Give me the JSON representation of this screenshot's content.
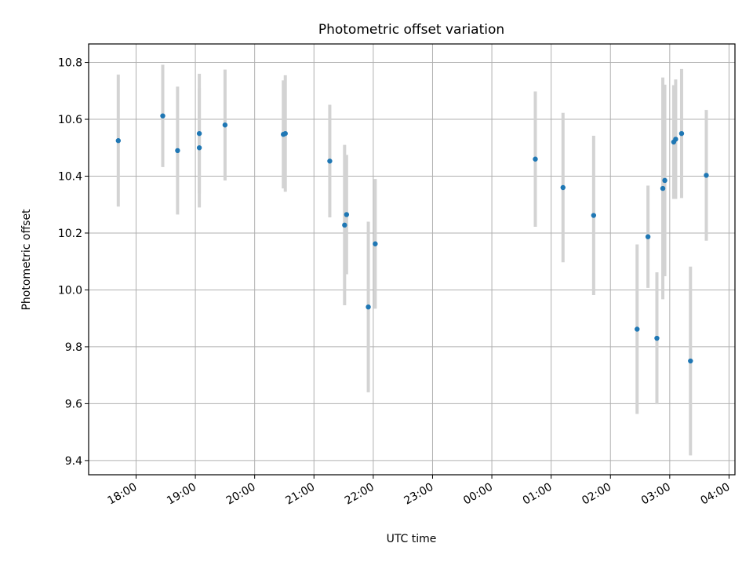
{
  "chart_data": {
    "type": "scatter",
    "title": "Photometric offset variation",
    "xlabel": "UTC time",
    "ylabel": "Photometric offset",
    "x_axis": "time",
    "xlim": [
      "2024-01-01T17:12",
      "2024-01-02T04:06"
    ],
    "ylim": [
      9.35,
      10.865
    ],
    "grid": true,
    "colors": {
      "point": "#1f77b4",
      "errorbar": "#d3d3d3",
      "grid": "#b0b0b0"
    },
    "x_ticks": [
      {
        "t": "2024-01-01T18:00",
        "label": "18:00"
      },
      {
        "t": "2024-01-01T19:00",
        "label": "19:00"
      },
      {
        "t": "2024-01-01T20:00",
        "label": "20:00"
      },
      {
        "t": "2024-01-01T21:00",
        "label": "21:00"
      },
      {
        "t": "2024-01-01T22:00",
        "label": "22:00"
      },
      {
        "t": "2024-01-01T23:00",
        "label": "23:00"
      },
      {
        "t": "2024-01-02T00:00",
        "label": "00:00"
      },
      {
        "t": "2024-01-02T01:00",
        "label": "01:00"
      },
      {
        "t": "2024-01-02T02:00",
        "label": "02:00"
      },
      {
        "t": "2024-01-02T03:00",
        "label": "03:00"
      },
      {
        "t": "2024-01-02T04:00",
        "label": "04:00"
      }
    ],
    "y_ticks": [
      {
        "v": 9.4,
        "label": "9.4"
      },
      {
        "v": 9.6,
        "label": "9.6"
      },
      {
        "v": 9.8,
        "label": "9.8"
      },
      {
        "v": 10.0,
        "label": "10.0"
      },
      {
        "v": 10.2,
        "label": "10.2"
      },
      {
        "v": 10.4,
        "label": "10.4"
      },
      {
        "v": 10.6,
        "label": "10.6"
      },
      {
        "v": 10.8,
        "label": "10.8"
      }
    ],
    "points": [
      {
        "t": "2024-01-01T17:42",
        "y": 10.525,
        "err": 0.232
      },
      {
        "t": "2024-01-01T18:27",
        "y": 10.612,
        "err": 0.18
      },
      {
        "t": "2024-01-01T18:42",
        "y": 10.49,
        "err": 0.225
      },
      {
        "t": "2024-01-01T19:04",
        "y": 10.55,
        "err": 0.21
      },
      {
        "t": "2024-01-01T19:04",
        "y": 10.5,
        "err": 0.21
      },
      {
        "t": "2024-01-01T19:30",
        "y": 10.58,
        "err": 0.195
      },
      {
        "t": "2024-01-01T20:29",
        "y": 10.547,
        "err": 0.19
      },
      {
        "t": "2024-01-01T20:31",
        "y": 10.55,
        "err": 0.205
      },
      {
        "t": "2024-01-01T21:16",
        "y": 10.453,
        "err": 0.198
      },
      {
        "t": "2024-01-01T21:31",
        "y": 10.228,
        "err": 0.282
      },
      {
        "t": "2024-01-01T21:33",
        "y": 10.265,
        "err": 0.21
      },
      {
        "t": "2024-01-01T21:55",
        "y": 9.94,
        "err": 0.3
      },
      {
        "t": "2024-01-01T22:02",
        "y": 10.162,
        "err": 0.228
      },
      {
        "t": "2024-01-02T00:44",
        "y": 10.46,
        "err": 0.238
      },
      {
        "t": "2024-01-02T01:12",
        "y": 10.36,
        "err": 0.263
      },
      {
        "t": "2024-01-02T01:43",
        "y": 10.262,
        "err": 0.28
      },
      {
        "t": "2024-01-02T02:27",
        "y": 9.862,
        "err": 0.298
      },
      {
        "t": "2024-01-02T02:38",
        "y": 10.187,
        "err": 0.18
      },
      {
        "t": "2024-01-02T02:47",
        "y": 9.83,
        "err": 0.232
      },
      {
        "t": "2024-01-02T02:53",
        "y": 10.357,
        "err": 0.39
      },
      {
        "t": "2024-01-02T02:55",
        "y": 10.385,
        "err": 0.337
      },
      {
        "t": "2024-01-02T03:04",
        "y": 10.52,
        "err": 0.2
      },
      {
        "t": "2024-01-02T03:06",
        "y": 10.53,
        "err": 0.21
      },
      {
        "t": "2024-01-02T03:12",
        "y": 10.55,
        "err": 0.227
      },
      {
        "t": "2024-01-02T03:21",
        "y": 9.75,
        "err": 0.332
      },
      {
        "t": "2024-01-02T03:37",
        "y": 10.403,
        "err": 0.23
      }
    ]
  }
}
